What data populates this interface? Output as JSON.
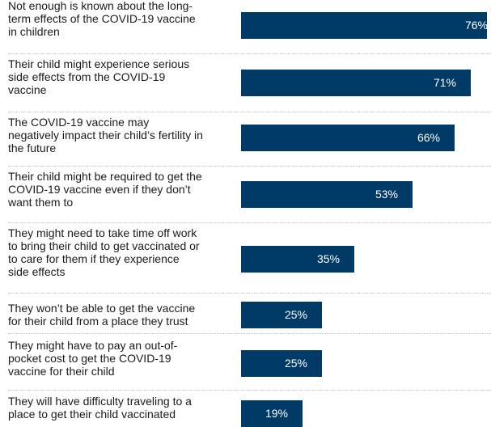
{
  "chart_data": {
    "type": "bar",
    "orientation": "horizontal",
    "categories": [
      "Not enough is known about the long-\nterm effects of the COVID-19 vaccine\nin children",
      "Their child might experience serious\nside effects from the COVID-19\nvaccine",
      "The COVID-19 vaccine may\nnegatively impact their child’s fertility in\nthe future",
      "Their child might be required to get the\nCOVID-19 vaccine even if they don’t\nwant them to",
      "They might need to take time off work\nto bring their child to get vaccinated or\nto care for them if they experience\nside effects",
      "They won’t be able to get the vaccine\nfor their child from a place they trust",
      "They might have to pay an out-of-\npocket cost to get the COVID-19\nvaccine for their child",
      "They will have difficulty traveling to a\nplace to get their child vaccinated"
    ],
    "values": [
      76,
      71,
      66,
      53,
      35,
      25,
      25,
      19
    ],
    "value_labels": [
      "76%",
      "71%",
      "66%",
      "53%",
      "35%",
      "25%",
      "25%",
      "19%"
    ],
    "xlim": [
      0,
      100
    ],
    "bar_color": "#003a66",
    "value_label_color": "#ffffff",
    "grid": false
  }
}
